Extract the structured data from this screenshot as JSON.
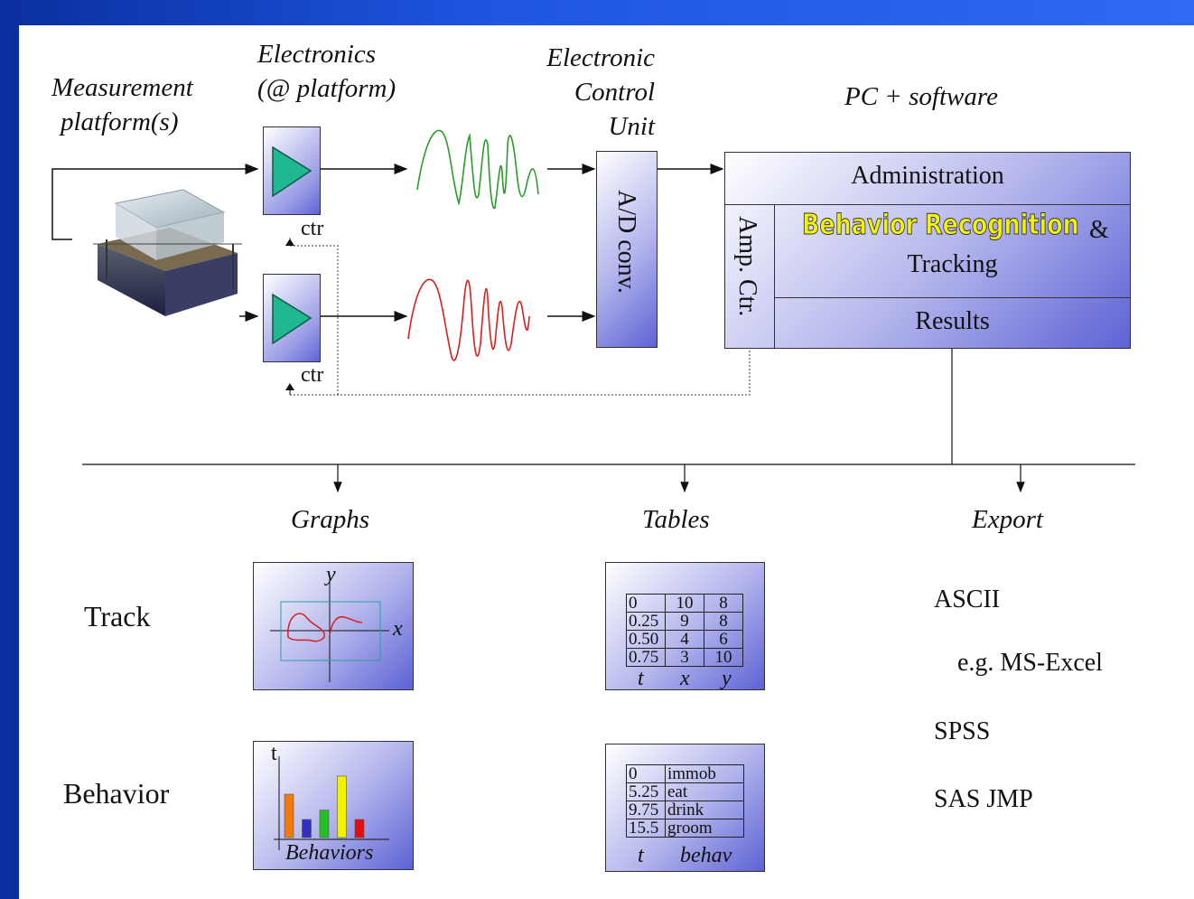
{
  "headers": {
    "measurement": [
      "Measurement",
      "platform(s)"
    ],
    "electronics": [
      "Electronics",
      "(@ platform)"
    ],
    "ecu": [
      "Electronic",
      "Control",
      "Unit"
    ],
    "pc": "PC + software"
  },
  "labels": {
    "ctr_top": "ctr",
    "ctr_bottom": "ctr",
    "ad_conv": "A/D conv.",
    "amp_ctr": "Amp. Ctr."
  },
  "software": {
    "administration": "Administration",
    "behavior_recognition": "Behavior Recognition",
    "amp": "&",
    "tracking": "Tracking",
    "results": "Results"
  },
  "outputs": {
    "graphs": "Graphs",
    "tables": "Tables",
    "export": "Export"
  },
  "rows": {
    "track": "Track",
    "behavior": "Behavior"
  },
  "track_graph": {
    "y_label": "y",
    "x_label": "x"
  },
  "behavior_graph": {
    "t_label": "t",
    "x_label": "Behaviors",
    "bars": [
      {
        "value": 0.6,
        "color": "#f07a10"
      },
      {
        "value": 0.25,
        "color": "#3030c8"
      },
      {
        "value": 0.38,
        "color": "#22c022"
      },
      {
        "value": 0.85,
        "color": "#f2f200"
      },
      {
        "value": 0.25,
        "color": "#e01010"
      }
    ]
  },
  "track_table": {
    "rows": [
      [
        "0",
        "10",
        "8"
      ],
      [
        "0.25",
        "9",
        "8"
      ],
      [
        "0.50",
        "4",
        "6"
      ],
      [
        "0.75",
        "3",
        "10"
      ]
    ],
    "footer": [
      "t",
      "x",
      "y"
    ]
  },
  "behav_table": {
    "rows": [
      [
        "0",
        "immob"
      ],
      [
        "5.25",
        "eat"
      ],
      [
        "9.75",
        "drink"
      ],
      [
        "15.5",
        "groom"
      ]
    ],
    "footer": [
      "t",
      "behav"
    ]
  },
  "export_items": [
    "ASCII",
    "e.g. MS-Excel",
    "SPSS",
    "SAS JMP"
  ],
  "colors": {
    "signal_top": "#2a9a2a",
    "signal_bottom": "#d62020",
    "amp_triangle": "#20b890"
  }
}
